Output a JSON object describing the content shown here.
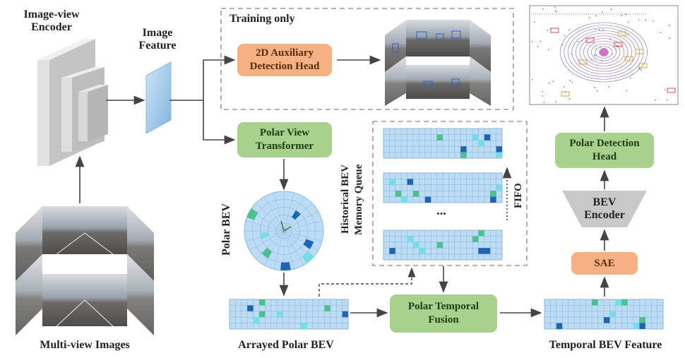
{
  "labels": {
    "image_view_encoder": "Image-view\nEncoder",
    "image_feature": "Image\nFeature",
    "training_only": "Training only",
    "multi_view_images": "Multi-view Images",
    "polar_bev": "Polar BEV",
    "arrayed_polar_bev": "Arrayed Polar BEV",
    "historical_queue": "Historical  BEV\nMemory Queue",
    "fifo": "FIFO",
    "ellipsis": "...",
    "bev_encoder": "BEV\nEncoder",
    "temporal_bev_feature": "Temporal BEV Feature"
  },
  "boxes": {
    "aux_head": "2D Auxiliary\nDetection Head",
    "polar_view_transformer": "Polar View\nTransformer",
    "polar_temporal_fusion": "Polar Temporal\nFusion",
    "sae": "SAE",
    "polar_detection_head": "Polar Detection\nHead"
  },
  "colors": {
    "green_box": "#a9d18e",
    "orange_box": "#f4b183",
    "grid_cell": "#bcdcf5",
    "grid_line": "#8cb8dc",
    "highlight_dark": "#1f63b5",
    "highlight_green": "#4cc08f",
    "highlight_cyan": "#6fe0e8",
    "encoder_gray": "#c8c8c8",
    "arrow": "#444444",
    "dashed_border": "#9a9a9a"
  }
}
